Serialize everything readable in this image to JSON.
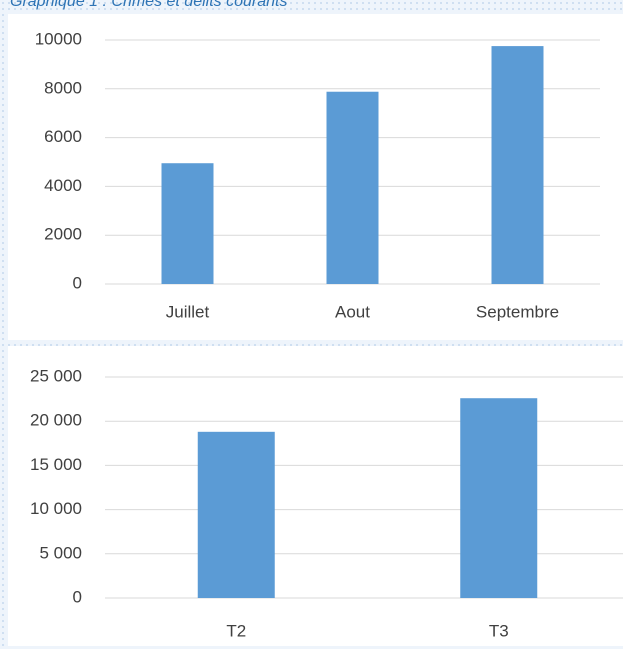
{
  "caption": "Graphique 1 : Crimes et délits courants",
  "chart_data": [
    {
      "type": "bar",
      "categories": [
        "Juillet",
        "Aout",
        "Septembre"
      ],
      "values": [
        4950,
        7880,
        9750
      ],
      "color": "#5b9bd5",
      "ylim": [
        0,
        10000
      ],
      "yticks": [
        0,
        2000,
        4000,
        6000,
        8000,
        10000
      ],
      "grid": true
    },
    {
      "type": "bar",
      "categories": [
        "T2",
        "T3"
      ],
      "values": [
        18800,
        22600
      ],
      "color": "#5b9bd5",
      "ylim": [
        0,
        25000
      ],
      "yticks": [
        0,
        {
          "value": 5000,
          "label": "5 000"
        },
        {
          "value": 10000,
          "label": "10 000"
        },
        {
          "value": 15000,
          "label": "15 000"
        },
        {
          "value": 20000,
          "label": "20 000"
        },
        {
          "value": 25000,
          "label": "25 000"
        }
      ],
      "grid": true
    }
  ]
}
